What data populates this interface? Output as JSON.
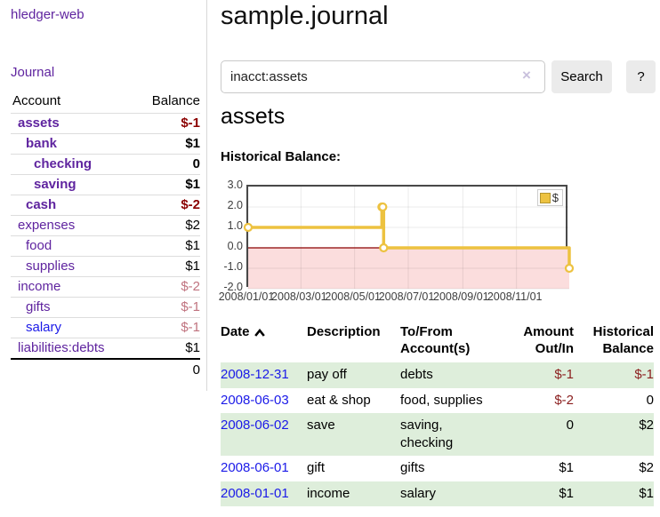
{
  "app": {
    "title": "hledger-web"
  },
  "sidebar": {
    "nav_journal": "Journal",
    "accounts": {
      "header_account": "Account",
      "header_balance": "Balance",
      "rows": [
        {
          "label": "assets",
          "balance": "$-1",
          "depth": 1,
          "strong": true,
          "link_color": "purple",
          "balance_color": "red"
        },
        {
          "label": "bank",
          "balance": "$1",
          "depth": 2,
          "strong": true,
          "link_color": "purple",
          "balance_color": "black"
        },
        {
          "label": "checking",
          "balance": "0",
          "depth": 3,
          "strong": true,
          "link_color": "purple",
          "balance_color": "black"
        },
        {
          "label": "saving",
          "balance": "$1",
          "depth": 3,
          "strong": true,
          "link_color": "purple",
          "balance_color": "black"
        },
        {
          "label": "cash",
          "balance": "$-2",
          "depth": 2,
          "strong": true,
          "link_color": "purple",
          "balance_color": "red"
        },
        {
          "label": "expenses",
          "balance": "$2",
          "depth": 1,
          "strong": false,
          "link_color": "purple",
          "balance_color": "black"
        },
        {
          "label": "food",
          "balance": "$1",
          "depth": 2,
          "strong": false,
          "link_color": "purple",
          "balance_color": "black"
        },
        {
          "label": "supplies",
          "balance": "$1",
          "depth": 2,
          "strong": false,
          "link_color": "purple",
          "balance_color": "black"
        },
        {
          "label": "income",
          "balance": "$-2",
          "depth": 1,
          "strong": false,
          "link_color": "purple",
          "balance_color": "rose"
        },
        {
          "label": "gifts",
          "balance": "$-1",
          "depth": 2,
          "strong": false,
          "link_color": "purple",
          "balance_color": "rose"
        },
        {
          "label": "salary",
          "balance": "$-1",
          "depth": 2,
          "strong": false,
          "link_color": "blue",
          "balance_color": "rose"
        },
        {
          "label": "liabilities:debts",
          "balance": "$1",
          "depth": 1,
          "strong": false,
          "link_color": "purple",
          "balance_color": "black"
        }
      ],
      "total": "0"
    }
  },
  "main": {
    "title": "sample.journal",
    "account_title": "assets",
    "chart_label": "Historical Balance:"
  },
  "search": {
    "value": "inacct:assets",
    "clear_icon": "×",
    "button": "Search",
    "help": "?"
  },
  "chart_data": {
    "type": "line",
    "title": "Historical Balance:",
    "series": [
      {
        "name": "$",
        "color": "#edc240",
        "step": true,
        "points": [
          {
            "date": "2008-01-01",
            "value": 1
          },
          {
            "date": "2008-06-01",
            "value": 2
          },
          {
            "date": "2008-06-02",
            "value": 2
          },
          {
            "date": "2008-06-03",
            "value": 0
          },
          {
            "date": "2008-12-31",
            "value": -1
          }
        ]
      }
    ],
    "x_tick_labels": [
      "2008/01/01",
      "2008/03/01",
      "2008/05/01",
      "2008/07/01",
      "2008/09/01",
      "2008/11/01"
    ],
    "y_tick_labels": [
      "3.0",
      "2.0",
      "1.0",
      "0.0",
      "-1.0",
      "-2.0"
    ],
    "y_ticks": [
      3.0,
      2.0,
      1.0,
      0.0,
      -1.0,
      -2.0
    ],
    "xlim": [
      "2008-01-01",
      "2008-12-31"
    ],
    "ylim": [
      -2,
      3
    ],
    "grid": true,
    "legend_position": "top-right",
    "legend": [
      {
        "label": "$",
        "color": "#edc240"
      }
    ],
    "negative_region_color": "#fbdddd",
    "zero_line_color": "#8b0000"
  },
  "register": {
    "headers": {
      "date": "Date",
      "description": "Description",
      "tofrom": "To/From Account(s)",
      "amount": "Amount Out/In",
      "balance": "Historical Balance"
    },
    "rows": [
      {
        "date": "2008-12-31",
        "description": "pay off",
        "tofrom": "debts",
        "amount": "$-1",
        "amount_negative": true,
        "balance": "$-1",
        "balance_negative": true
      },
      {
        "date": "2008-06-03",
        "description": "eat & shop",
        "tofrom": "food, supplies",
        "amount": "$-2",
        "amount_negative": true,
        "balance": "0",
        "balance_negative": false
      },
      {
        "date": "2008-06-02",
        "description": "save",
        "tofrom": "saving, checking",
        "amount": "0",
        "amount_negative": false,
        "balance": "$2",
        "balance_negative": false
      },
      {
        "date": "2008-06-01",
        "description": "gift",
        "tofrom": "gifts",
        "amount": "$1",
        "amount_negative": false,
        "balance": "$2",
        "balance_negative": false
      },
      {
        "date": "2008-01-01",
        "description": "income",
        "tofrom": "salary",
        "amount": "$1",
        "amount_negative": false,
        "balance": "$1",
        "balance_negative": false
      }
    ]
  }
}
